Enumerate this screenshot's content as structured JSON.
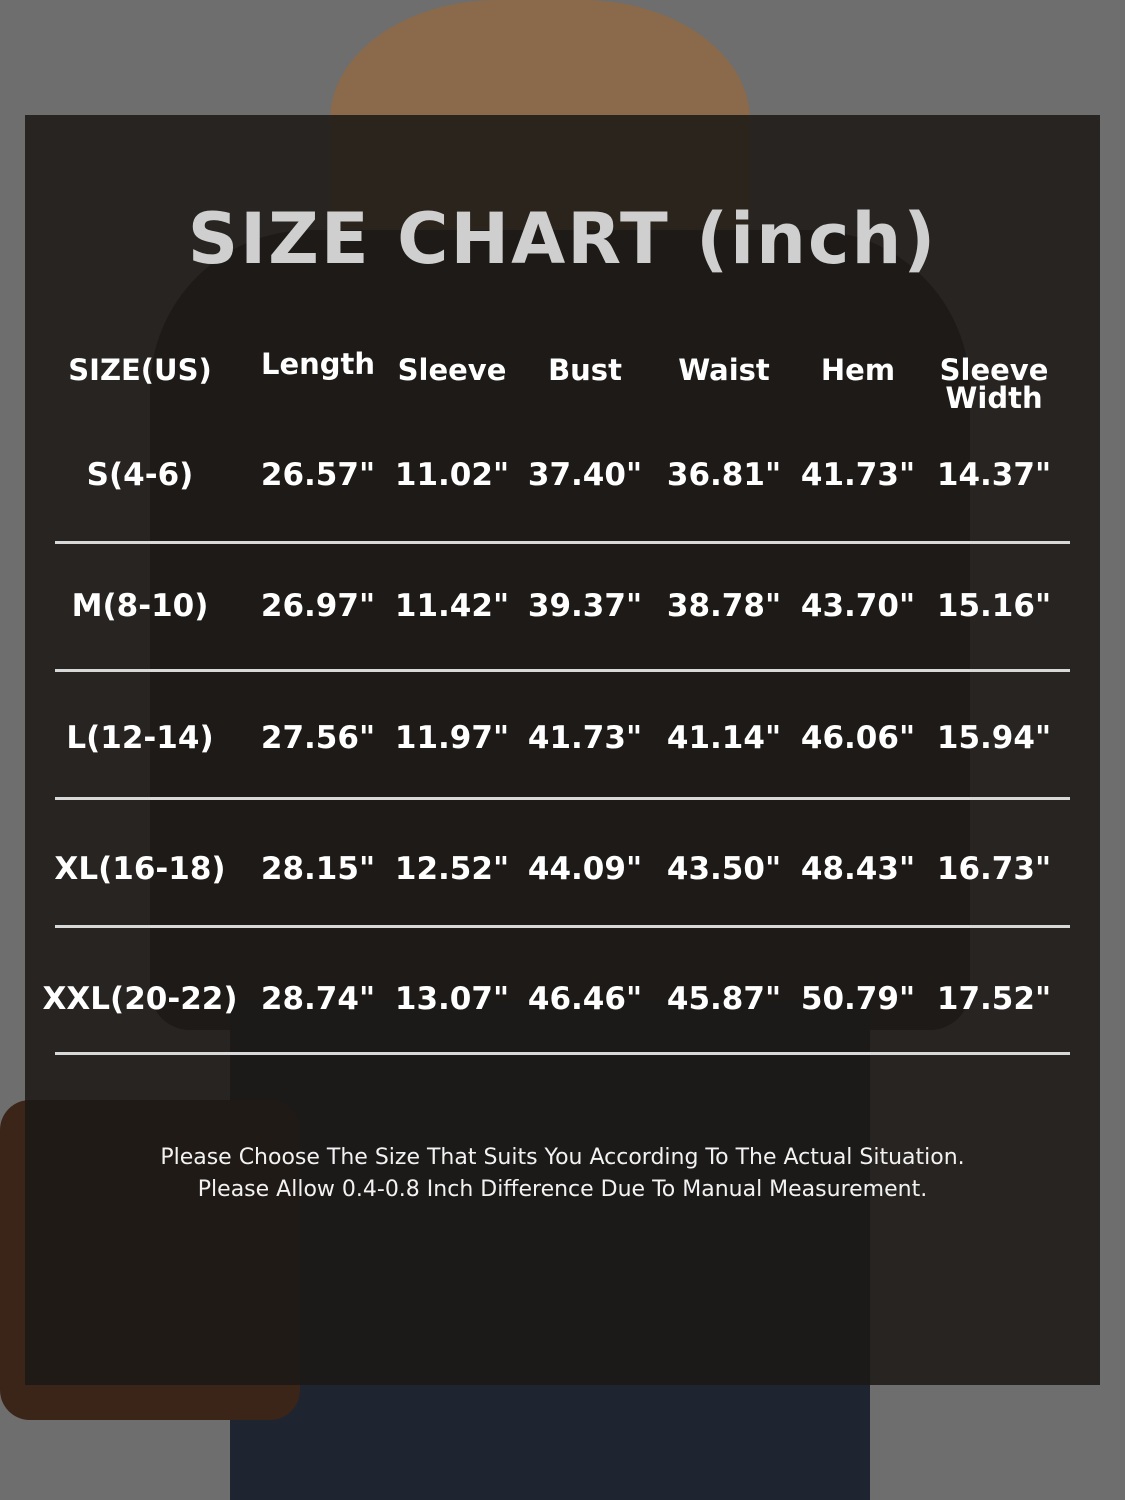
{
  "title": "SIZE CHART (inch)",
  "columns": [
    "SIZE(US)",
    "Length",
    "Sleeve",
    "Bust",
    "Waist",
    "Hem",
    "Sleeve Width"
  ],
  "rows": [
    [
      "S(4-6)",
      "26.57\"",
      "11.02\"",
      "37.40\"",
      "36.81\"",
      "41.73\"",
      "14.37\""
    ],
    [
      "M(8-10)",
      "26.97\"",
      "11.42\"",
      "39.37\"",
      "38.78\"",
      "43.70\"",
      "15.16\""
    ],
    [
      "L(12-14)",
      "27.56\"",
      "11.97\"",
      "41.73\"",
      "41.14\"",
      "46.06\"",
      "15.94\""
    ],
    [
      "XL(16-18)",
      "28.15\"",
      "12.52\"",
      "44.09\"",
      "43.50\"",
      "48.43\"",
      "16.73\""
    ],
    [
      "XXL(20-22)",
      "28.74\"",
      "13.07\"",
      "46.46\"",
      "45.87\"",
      "50.79\"",
      "17.52\""
    ]
  ],
  "notes": [
    "Please Choose The Size That Suits You According To The Actual Situation.",
    "Please Allow 0.4-0.8 Inch Difference Due To Manual Measurement."
  ],
  "colors": {
    "background": "#6e6e6e",
    "panel": "#1c1816",
    "text": "#ffffff",
    "title": "#cfcfcf"
  }
}
